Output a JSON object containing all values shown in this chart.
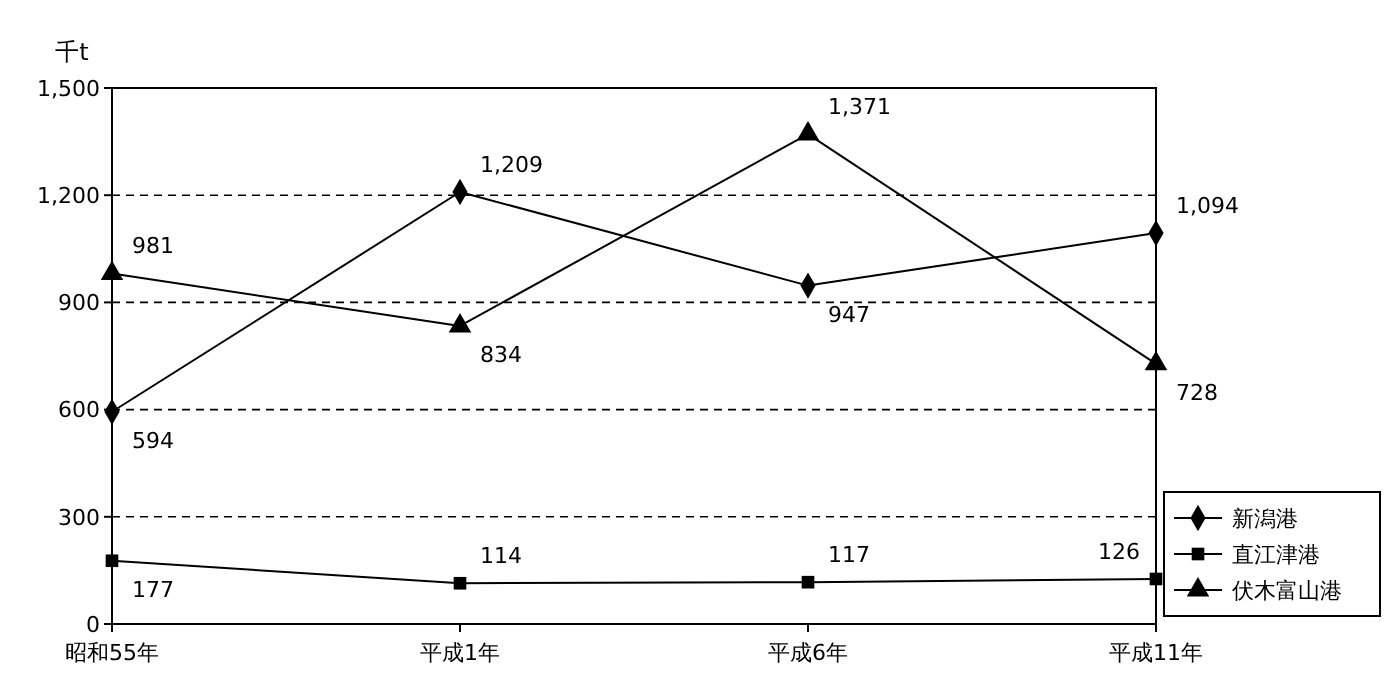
{
  "chart_data": {
    "type": "line",
    "ylabel": "千t",
    "categories": [
      "昭和55年",
      "平成1年",
      "平成6年",
      "平成11年"
    ],
    "series": [
      {
        "name": "新潟港",
        "color": "#000000",
        "marker": "diamond",
        "values": [
          594,
          1209,
          947,
          1094
        ],
        "value_labels": [
          "594",
          "1,209",
          "947",
          "1,094"
        ]
      },
      {
        "name": "直江津港",
        "color": "#000000",
        "marker": "square",
        "values": [
          177,
          114,
          117,
          126
        ],
        "value_labels": [
          "177",
          "114",
          "117",
          "126"
        ]
      },
      {
        "name": "伏木富山港",
        "color": "#000000",
        "marker": "triangle",
        "values": [
          981,
          834,
          1371,
          728
        ],
        "value_labels": [
          "981",
          "834",
          "1,371",
          "728"
        ]
      }
    ],
    "ylim": [
      0,
      1500
    ],
    "yticks": [
      {
        "value": 0,
        "label": "0"
      },
      {
        "value": 300,
        "label": "300"
      },
      {
        "value": 600,
        "label": "600"
      },
      {
        "value": 900,
        "label": "900"
      },
      {
        "value": 1200,
        "label": "1,200"
      },
      {
        "value": 1500,
        "label": "1,500"
      }
    ],
    "grid": "y",
    "legend": "bottom right",
    "line_style": "solid"
  }
}
